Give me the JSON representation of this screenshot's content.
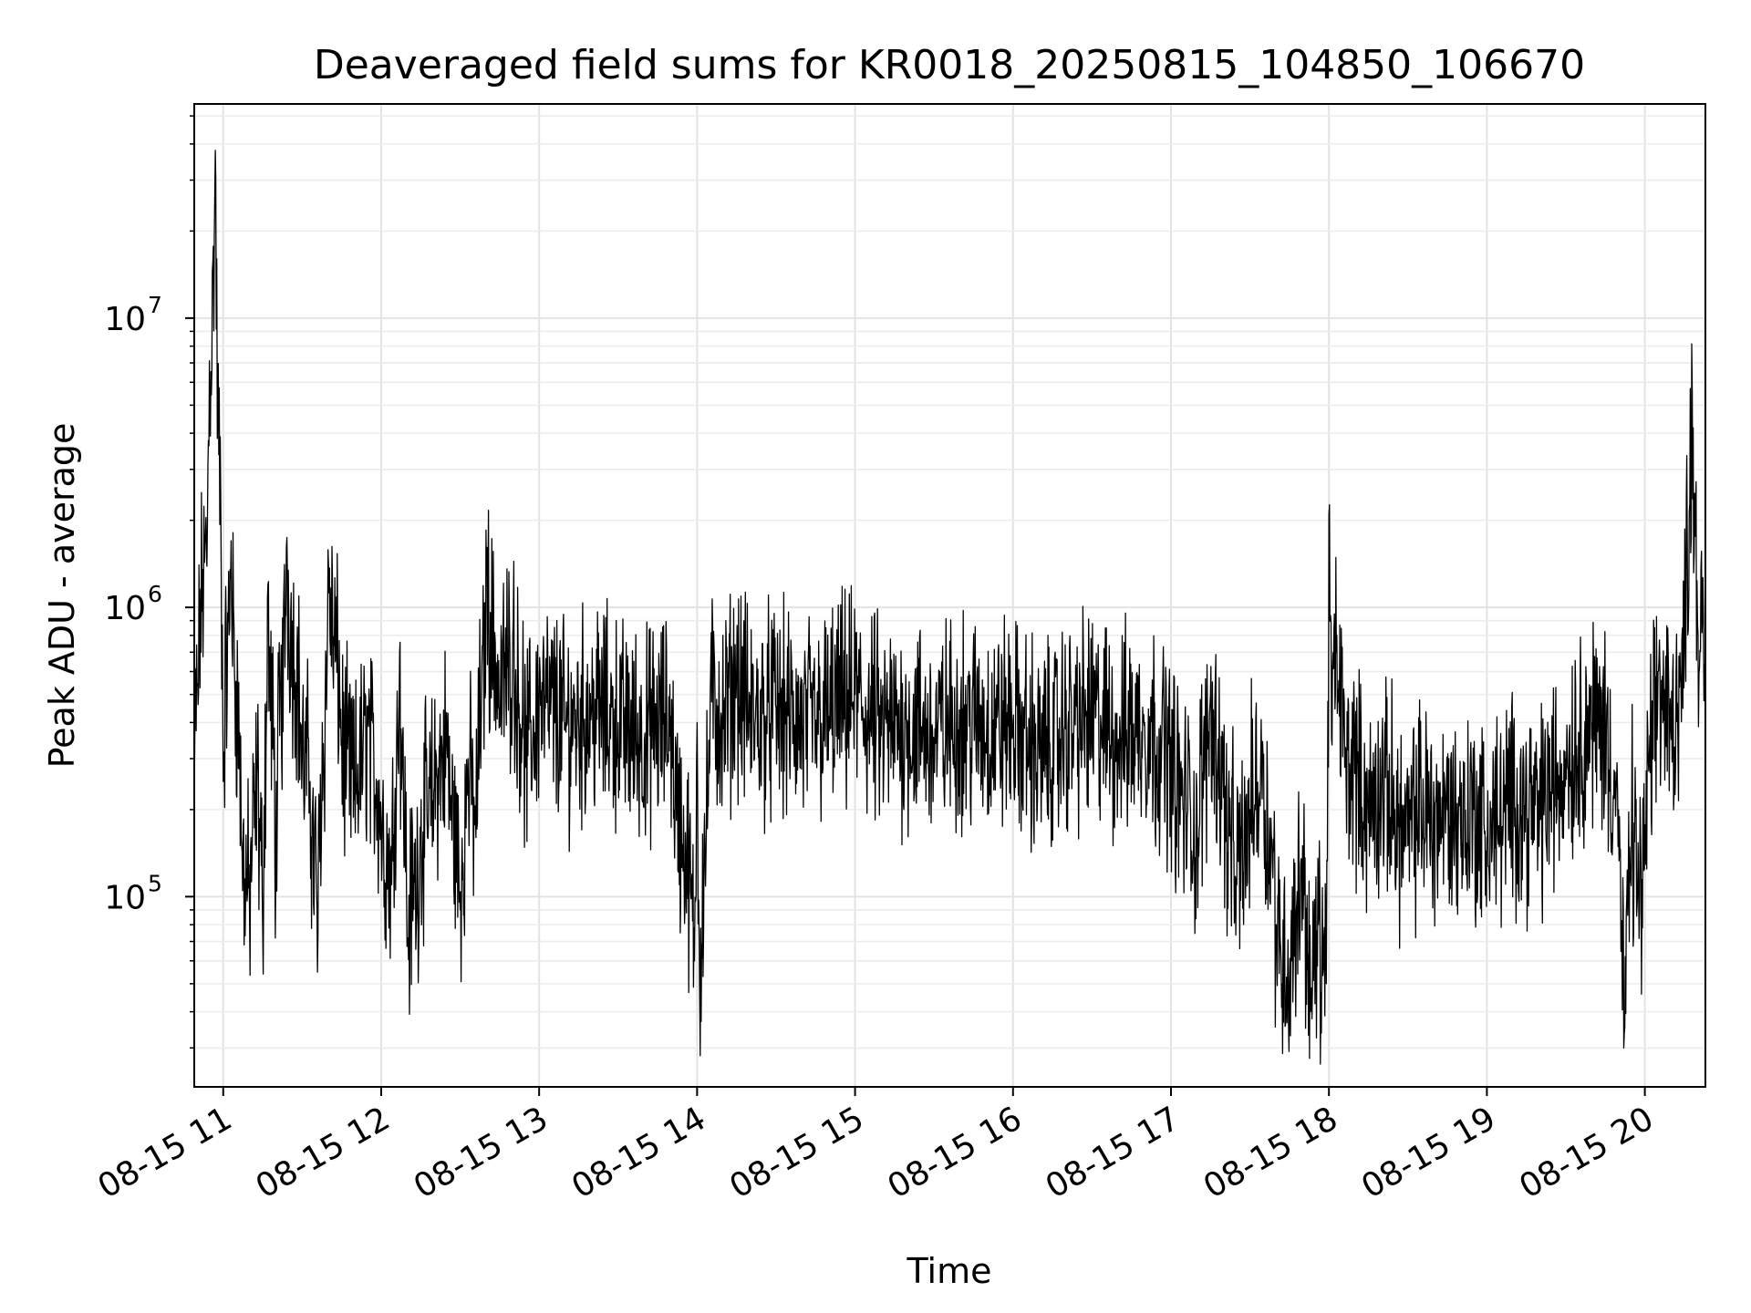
{
  "chart_data": {
    "type": "line",
    "title": "Deaveraged field sums for KR0018_20250815_104850_106670",
    "xlabel": "Time",
    "ylabel": "Peak ADU - average",
    "yscale": "log",
    "xlim": [
      "2025-08-15 10:49",
      "2025-08-15 20:23"
    ],
    "ylim": [
      22000,
      55000000
    ],
    "x_tick_labels": [
      "08-15 11",
      "08-15 12",
      "08-15 13",
      "08-15 14",
      "08-15 15",
      "08-15 16",
      "08-15 17",
      "08-15 18",
      "08-15 19",
      "08-15 20"
    ],
    "y_ticks": [
      {
        "base": "10",
        "exp": "5"
      },
      {
        "base": "10",
        "exp": "6"
      },
      {
        "base": "10",
        "exp": "7"
      }
    ],
    "grid": true,
    "line_color": "#000000",
    "series": [
      {
        "x": [
          "10:49",
          "10:51",
          "10:54",
          "10:57",
          "11:00",
          "11:03",
          "11:07",
          "11:10",
          "11:13",
          "11:15",
          "11:17",
          "11:20",
          "11:24",
          "11:30",
          "11:33",
          "11:36",
          "11:40",
          "11:45",
          "11:50",
          "11:55",
          "12:00",
          "12:04",
          "12:07",
          "12:10",
          "12:15",
          "12:20",
          "12:25",
          "12:30",
          "12:33",
          "12:36",
          "12:40",
          "12:45",
          "12:50",
          "12:55",
          "13:00",
          "13:10",
          "13:20",
          "13:30",
          "13:40",
          "13:50",
          "13:59",
          "14:00",
          "14:01",
          "14:05",
          "14:10",
          "14:15",
          "14:20",
          "14:30",
          "14:40",
          "14:50",
          "15:00",
          "15:10",
          "15:20",
          "15:30",
          "15:40",
          "15:50",
          "16:00",
          "16:10",
          "16:20",
          "16:30",
          "16:40",
          "16:50",
          "17:00",
          "17:10",
          "17:15",
          "17:20",
          "17:25",
          "17:30",
          "17:35",
          "17:40",
          "17:45",
          "17:50",
          "17:53",
          "17:56",
          "17:59",
          "18:00",
          "18:01",
          "18:03",
          "18:06",
          "18:10",
          "18:15",
          "18:20",
          "18:25",
          "18:30",
          "18:35",
          "18:40",
          "18:45",
          "18:50",
          "18:55",
          "19:00",
          "19:10",
          "19:20",
          "19:30",
          "19:35",
          "19:40",
          "19:45",
          "19:50",
          "19:52",
          "19:55",
          "19:58",
          "20:00",
          "20:05",
          "20:10",
          "20:15",
          "20:18",
          "20:20",
          "20:23"
        ],
        "y": [
          250000,
          800000,
          1900000,
          38000000,
          250000,
          1700000,
          150000,
          90000,
          300000,
          75000,
          1200000,
          130000,
          1600000,
          300000,
          250000,
          75000,
          1400000,
          350000,
          220000,
          400000,
          180000,
          110000,
          700000,
          70000,
          160000,
          230000,
          350000,
          90000,
          300000,
          160000,
          1300000,
          450000,
          800000,
          280000,
          500000,
          380000,
          450000,
          400000,
          350000,
          420000,
          60000,
          400000,
          43000,
          500000,
          380000,
          600000,
          400000,
          450000,
          380000,
          420000,
          500000,
          360000,
          400000,
          350000,
          420000,
          380000,
          400000,
          300000,
          380000,
          420000,
          350000,
          400000,
          300000,
          150000,
          500000,
          220000,
          110000,
          200000,
          300000,
          80000,
          50000,
          150000,
          40000,
          80000,
          50000,
          2100000,
          350000,
          800000,
          280000,
          300000,
          180000,
          250000,
          200000,
          150000,
          220000,
          180000,
          200000,
          180000,
          200000,
          160000,
          220000,
          190000,
          300000,
          350000,
          400000,
          380000,
          200000,
          30000,
          200000,
          90000,
          150000,
          600000,
          350000,
          700000,
          5500000,
          900000,
          550000
        ]
      }
    ]
  }
}
